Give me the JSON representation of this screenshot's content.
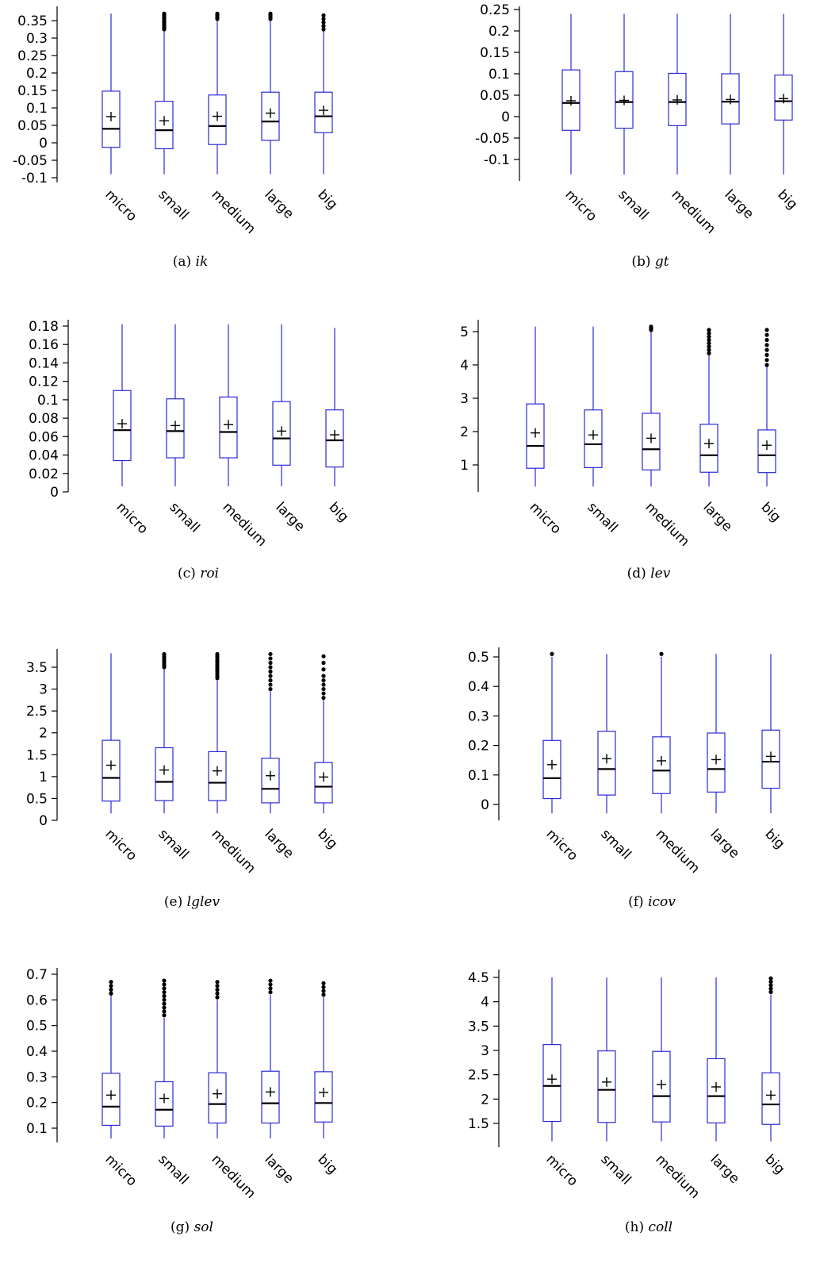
{
  "colors": {
    "box": "#2a2ad8",
    "median": "#000000",
    "mean": "#000000",
    "outlier": "#000000",
    "axis": "#000000"
  },
  "categories": [
    "micro",
    "small",
    "medium",
    "large",
    "big"
  ],
  "chart_data": [
    {
      "type": "box",
      "panel": "a",
      "caption_prefix": "(a)",
      "caption_var": "ik",
      "ylim": [
        -0.1,
        0.37
      ],
      "yticks": [
        "-0.1",
        "-0.05",
        "0",
        "0.05",
        "0.1",
        "0.15",
        "0.2",
        "0.25",
        "0.3",
        "0.35"
      ],
      "boxes": [
        {
          "cat": "micro",
          "min": -0.09,
          "q1": -0.013,
          "median": 0.04,
          "q3": 0.148,
          "max": 0.37,
          "mean": 0.075,
          "outliers": []
        },
        {
          "cat": "small",
          "min": -0.09,
          "q1": -0.017,
          "median": 0.036,
          "q3": 0.119,
          "max": 0.32,
          "mean": 0.063,
          "outliers": [
            0.325,
            0.33,
            0.335,
            0.34,
            0.345,
            0.35,
            0.355,
            0.36,
            0.365,
            0.37
          ]
        },
        {
          "cat": "medium",
          "min": -0.09,
          "q1": -0.005,
          "median": 0.048,
          "q3": 0.137,
          "max": 0.35,
          "mean": 0.076,
          "outliers": [
            0.355,
            0.36,
            0.365,
            0.37
          ]
        },
        {
          "cat": "large",
          "min": -0.09,
          "q1": 0.007,
          "median": 0.061,
          "q3": 0.145,
          "max": 0.35,
          "mean": 0.085,
          "outliers": [
            0.355,
            0.36,
            0.365,
            0.37
          ]
        },
        {
          "cat": "big",
          "min": -0.09,
          "q1": 0.029,
          "median": 0.076,
          "q3": 0.145,
          "max": 0.32,
          "mean": 0.093,
          "outliers": [
            0.325,
            0.335,
            0.345,
            0.355,
            0.365
          ]
        }
      ]
    },
    {
      "type": "box",
      "panel": "b",
      "caption_prefix": "(b)",
      "caption_var": "gt",
      "ylim": [
        -0.15,
        0.26
      ],
      "yticks": [
        "-0.1",
        "-0.05",
        "0",
        "0.05",
        "0.1",
        "0.15",
        "0.2",
        "0.25"
      ],
      "boxes": [
        {
          "cat": "micro",
          "min": -0.135,
          "q1": -0.032,
          "median": 0.032,
          "q3": 0.109,
          "max": 0.24,
          "mean": 0.037,
          "outliers": []
        },
        {
          "cat": "small",
          "min": -0.135,
          "q1": -0.027,
          "median": 0.034,
          "q3": 0.105,
          "max": 0.24,
          "mean": 0.038,
          "outliers": []
        },
        {
          "cat": "medium",
          "min": -0.135,
          "q1": -0.021,
          "median": 0.034,
          "q3": 0.101,
          "max": 0.24,
          "mean": 0.039,
          "outliers": []
        },
        {
          "cat": "large",
          "min": -0.135,
          "q1": -0.017,
          "median": 0.035,
          "q3": 0.1,
          "max": 0.24,
          "mean": 0.04,
          "outliers": []
        },
        {
          "cat": "big",
          "min": -0.135,
          "q1": -0.008,
          "median": 0.036,
          "q3": 0.097,
          "max": 0.24,
          "mean": 0.042,
          "outliers": []
        }
      ]
    },
    {
      "type": "box",
      "panel": "c",
      "caption_prefix": "(c)",
      "caption_var": "roi",
      "ylim": [
        0,
        0.185
      ],
      "yticks": [
        "0",
        "0.02",
        "0.04",
        "0.06",
        "0.08",
        "0.1",
        "0.12",
        "0.14",
        "0.16",
        "0.18"
      ],
      "boxes": [
        {
          "cat": "micro",
          "min": 0.006,
          "q1": 0.034,
          "median": 0.067,
          "q3": 0.11,
          "max": 0.182,
          "mean": 0.074,
          "outliers": []
        },
        {
          "cat": "small",
          "min": 0.006,
          "q1": 0.037,
          "median": 0.066,
          "q3": 0.101,
          "max": 0.182,
          "mean": 0.072,
          "outliers": []
        },
        {
          "cat": "medium",
          "min": 0.006,
          "q1": 0.037,
          "median": 0.065,
          "q3": 0.103,
          "max": 0.182,
          "mean": 0.073,
          "outliers": []
        },
        {
          "cat": "large",
          "min": 0.006,
          "q1": 0.029,
          "median": 0.058,
          "q3": 0.098,
          "max": 0.182,
          "mean": 0.066,
          "outliers": []
        },
        {
          "cat": "big",
          "min": 0.006,
          "q1": 0.027,
          "median": 0.056,
          "q3": 0.089,
          "max": 0.178,
          "mean": 0.062,
          "outliers": []
        }
      ]
    },
    {
      "type": "box",
      "panel": "d",
      "caption_prefix": "(d)",
      "caption_var": "lev",
      "ylim": [
        0.15,
        5.3
      ],
      "yticks": [
        "1",
        "2",
        "3",
        "4",
        "5"
      ],
      "boxes": [
        {
          "cat": "micro",
          "min": 0.35,
          "q1": 0.9,
          "median": 1.57,
          "q3": 2.83,
          "max": 5.15,
          "mean": 1.96,
          "outliers": []
        },
        {
          "cat": "small",
          "min": 0.35,
          "q1": 0.92,
          "median": 1.62,
          "q3": 2.65,
          "max": 5.15,
          "mean": 1.9,
          "outliers": []
        },
        {
          "cat": "medium",
          "min": 0.35,
          "q1": 0.85,
          "median": 1.47,
          "q3": 2.55,
          "max": 5.0,
          "mean": 1.8,
          "outliers": [
            5.05,
            5.1,
            5.15
          ]
        },
        {
          "cat": "large",
          "min": 0.35,
          "q1": 0.78,
          "median": 1.29,
          "q3": 2.22,
          "max": 4.3,
          "mean": 1.64,
          "outliers": [
            4.35,
            4.45,
            4.55,
            4.65,
            4.75,
            4.85,
            4.95,
            5.05
          ]
        },
        {
          "cat": "big",
          "min": 0.35,
          "q1": 0.77,
          "median": 1.29,
          "q3": 2.05,
          "max": 3.95,
          "mean": 1.59,
          "outliers": [
            4.0,
            4.15,
            4.3,
            4.45,
            4.6,
            4.75,
            4.9,
            5.05
          ]
        }
      ]
    },
    {
      "type": "box",
      "panel": "e",
      "caption_prefix": "(e)",
      "caption_var": "lglev",
      "ylim": [
        0,
        3.85
      ],
      "yticks": [
        "0",
        "0.5",
        "1",
        "1.5",
        "2",
        "2.5",
        "3",
        "3.5"
      ],
      "boxes": [
        {
          "cat": "micro",
          "min": 0.16,
          "q1": 0.44,
          "median": 0.97,
          "q3": 1.83,
          "max": 3.82,
          "mean": 1.26,
          "outliers": []
        },
        {
          "cat": "small",
          "min": 0.16,
          "q1": 0.45,
          "median": 0.88,
          "q3": 1.66,
          "max": 3.45,
          "mean": 1.15,
          "outliers": [
            3.5,
            3.55,
            3.6,
            3.65,
            3.7,
            3.75,
            3.8
          ]
        },
        {
          "cat": "medium",
          "min": 0.16,
          "q1": 0.45,
          "median": 0.86,
          "q3": 1.57,
          "max": 3.2,
          "mean": 1.13,
          "outliers": [
            3.25,
            3.3,
            3.35,
            3.4,
            3.45,
            3.5,
            3.55,
            3.6,
            3.65,
            3.7,
            3.75,
            3.8
          ]
        },
        {
          "cat": "large",
          "min": 0.16,
          "q1": 0.4,
          "median": 0.72,
          "q3": 1.42,
          "max": 2.95,
          "mean": 1.02,
          "outliers": [
            3.0,
            3.1,
            3.2,
            3.3,
            3.4,
            3.5,
            3.6,
            3.7,
            3.8
          ]
        },
        {
          "cat": "big",
          "min": 0.16,
          "q1": 0.4,
          "median": 0.77,
          "q3": 1.32,
          "max": 2.75,
          "mean": 0.99,
          "outliers": [
            2.8,
            2.9,
            3.0,
            3.1,
            3.2,
            3.3,
            3.45,
            3.6,
            3.75
          ]
        }
      ]
    },
    {
      "type": "box",
      "panel": "f",
      "caption_prefix": "(f)",
      "caption_var": "icov",
      "ylim": [
        -0.05,
        0.52
      ],
      "yticks": [
        "0",
        "0.1",
        "0.2",
        "0.3",
        "0.4",
        "0.5"
      ],
      "boxes": [
        {
          "cat": "micro",
          "min": -0.03,
          "q1": 0.02,
          "median": 0.089,
          "q3": 0.217,
          "max": 0.5,
          "mean": 0.135,
          "outliers": [
            0.51
          ]
        },
        {
          "cat": "small",
          "min": -0.03,
          "q1": 0.032,
          "median": 0.12,
          "q3": 0.248,
          "max": 0.51,
          "mean": 0.155,
          "outliers": []
        },
        {
          "cat": "medium",
          "min": -0.03,
          "q1": 0.037,
          "median": 0.115,
          "q3": 0.229,
          "max": 0.5,
          "mean": 0.148,
          "outliers": [
            0.51
          ]
        },
        {
          "cat": "large",
          "min": -0.03,
          "q1": 0.042,
          "median": 0.12,
          "q3": 0.242,
          "max": 0.51,
          "mean": 0.152,
          "outliers": []
        },
        {
          "cat": "big",
          "min": -0.03,
          "q1": 0.055,
          "median": 0.145,
          "q3": 0.252,
          "max": 0.51,
          "mean": 0.163,
          "outliers": []
        }
      ]
    },
    {
      "type": "box",
      "panel": "g",
      "caption_prefix": "(g)",
      "caption_var": "sol",
      "ylim": [
        0.04,
        0.7
      ],
      "yticks": [
        "0.1",
        "0.2",
        "0.3",
        "0.4",
        "0.5",
        "0.6",
        "0.7"
      ],
      "boxes": [
        {
          "cat": "micro",
          "min": 0.06,
          "q1": 0.111,
          "median": 0.184,
          "q3": 0.314,
          "max": 0.62,
          "mean": 0.229,
          "outliers": [
            0.625,
            0.64,
            0.655,
            0.67
          ]
        },
        {
          "cat": "small",
          "min": 0.06,
          "q1": 0.108,
          "median": 0.172,
          "q3": 0.281,
          "max": 0.53,
          "mean": 0.216,
          "outliers": [
            0.54,
            0.555,
            0.57,
            0.585,
            0.6,
            0.615,
            0.63,
            0.645,
            0.66,
            0.675
          ]
        },
        {
          "cat": "medium",
          "min": 0.06,
          "q1": 0.12,
          "median": 0.194,
          "q3": 0.316,
          "max": 0.6,
          "mean": 0.234,
          "outliers": [
            0.61,
            0.625,
            0.64,
            0.655,
            0.67
          ]
        },
        {
          "cat": "large",
          "min": 0.06,
          "q1": 0.12,
          "median": 0.197,
          "q3": 0.322,
          "max": 0.62,
          "mean": 0.241,
          "outliers": [
            0.63,
            0.645,
            0.66,
            0.675
          ]
        },
        {
          "cat": "big",
          "min": 0.06,
          "q1": 0.124,
          "median": 0.198,
          "q3": 0.32,
          "max": 0.61,
          "mean": 0.239,
          "outliers": [
            0.62,
            0.635,
            0.65,
            0.665
          ]
        }
      ]
    },
    {
      "type": "box",
      "panel": "h",
      "caption_prefix": "(h)",
      "caption_var": "coll",
      "ylim": [
        1.1,
        4.55
      ],
      "yticks": [
        "1.5",
        "2",
        "2.5",
        "3",
        "3.5",
        "4",
        "4.5"
      ],
      "boxes": [
        {
          "cat": "micro",
          "min": 1.13,
          "q1": 1.54,
          "median": 2.27,
          "q3": 3.12,
          "max": 4.5,
          "mean": 2.41,
          "outliers": []
        },
        {
          "cat": "small",
          "min": 1.13,
          "q1": 1.52,
          "median": 2.19,
          "q3": 2.99,
          "max": 4.5,
          "mean": 2.35,
          "outliers": []
        },
        {
          "cat": "medium",
          "min": 1.13,
          "q1": 1.53,
          "median": 2.06,
          "q3": 2.98,
          "max": 4.5,
          "mean": 2.3,
          "outliers": []
        },
        {
          "cat": "large",
          "min": 1.13,
          "q1": 1.51,
          "median": 2.06,
          "q3": 2.83,
          "max": 4.5,
          "mean": 2.25,
          "outliers": []
        },
        {
          "cat": "big",
          "min": 1.13,
          "q1": 1.48,
          "median": 1.89,
          "q3": 2.54,
          "max": 4.15,
          "mean": 2.08,
          "outliers": [
            4.2,
            4.27,
            4.34,
            4.41,
            4.48
          ]
        }
      ]
    }
  ]
}
